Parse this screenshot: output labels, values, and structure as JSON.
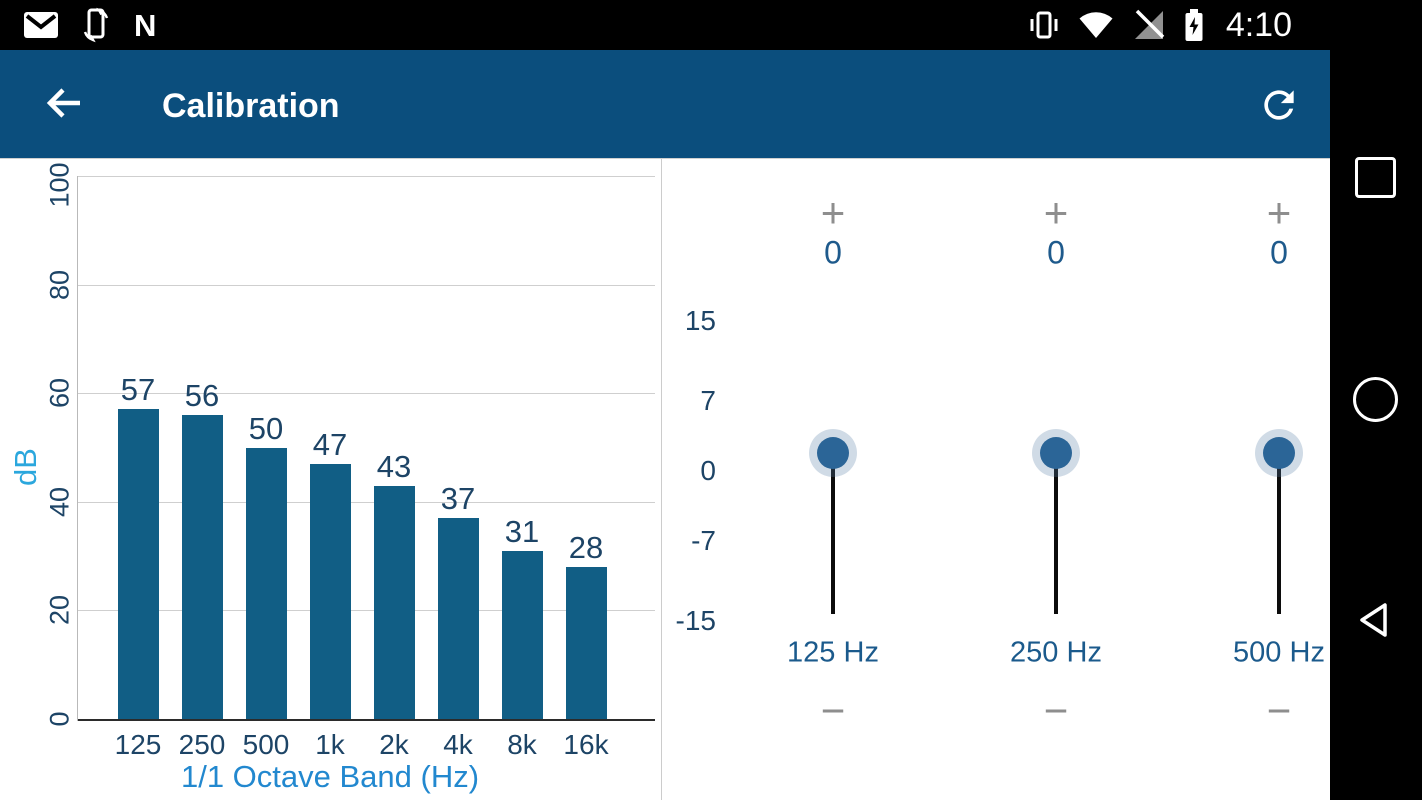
{
  "status_bar": {
    "time": "4:10",
    "nfc_glyph": "N",
    "icons": [
      "gmail-icon",
      "screen-rotation-icon",
      "nfc-icon",
      "vibrate-icon",
      "wifi-icon",
      "cell-signal-off-icon",
      "battery-charging-icon"
    ]
  },
  "app_bar": {
    "title": "Calibration"
  },
  "colors": {
    "app_bar": "#0b4e7d",
    "bar": "#115e85",
    "tick_label": "#1d4466",
    "value_label": "#1d4466",
    "axis_title_x": "#2288cf",
    "axis_title_y": "#2ba7dd",
    "eq_value": "#1e5a8c",
    "eq_band": "#1b5a8c",
    "eq_plusminus": "#8e8e8e",
    "thumb": "#2b6597"
  },
  "chart_data": {
    "type": "bar",
    "title": "",
    "categories": [
      "125",
      "250",
      "500",
      "1k",
      "2k",
      "4k",
      "8k",
      "16k"
    ],
    "values": [
      57,
      56,
      50,
      47,
      43,
      37,
      31,
      28
    ],
    "xlabel": "1/1 Octave Band (Hz)",
    "ylabel": "dB",
    "ylim": [
      0,
      100
    ],
    "yticks": [
      0,
      20,
      40,
      60,
      80,
      100
    ],
    "grid": true,
    "legend": false
  },
  "equalizer": {
    "range": [
      -15,
      15
    ],
    "scale_ticks": [
      {
        "label": "15",
        "value": 15
      },
      {
        "label": "7",
        "value": 7
      },
      {
        "label": "0",
        "value": 0
      },
      {
        "label": "-7",
        "value": -7
      },
      {
        "label": "-15",
        "value": -15
      }
    ],
    "sliders": [
      {
        "band": "125 Hz",
        "value": "0",
        "plus": "+",
        "minus": "−"
      },
      {
        "band": "250 Hz",
        "value": "0",
        "plus": "+",
        "minus": "−"
      },
      {
        "band": "500 Hz",
        "value": "0",
        "plus": "+",
        "minus": "−"
      }
    ]
  },
  "nav_bar": {
    "buttons": [
      "recents",
      "home",
      "back"
    ]
  }
}
